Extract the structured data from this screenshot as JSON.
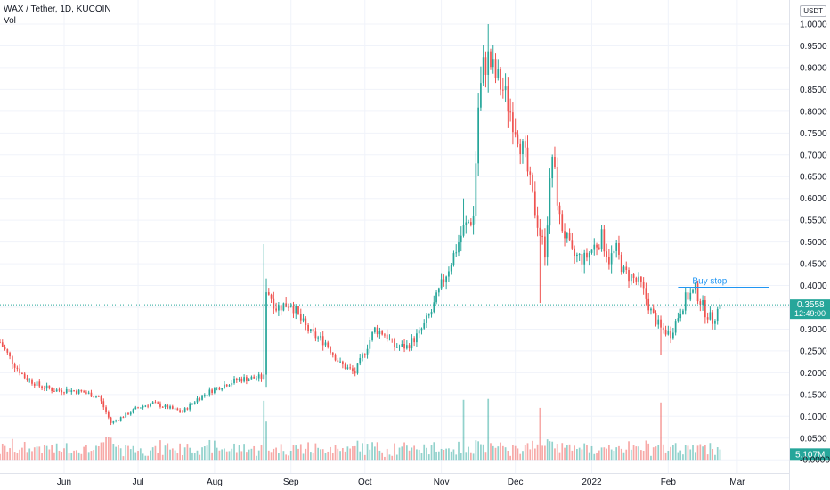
{
  "legend": {
    "symbol_line": "WAX / Tether, 1D, KUCOIN",
    "volume_label": "Vol"
  },
  "unit_label": "USDT",
  "colors": {
    "up": "#26a69a",
    "down": "#ef5350",
    "price_line": "#26a69a",
    "vol_badge": "#26a69a"
  },
  "chart_data": {
    "type": "candlestick",
    "symbol": "WAX / Tether, 1D, KUCOIN",
    "y_axis": {
      "ticks": [
        1.0,
        0.95,
        0.9,
        0.85,
        0.8,
        0.75,
        0.7,
        0.65,
        0.6,
        0.55,
        0.5,
        0.45,
        0.4,
        0.35,
        0.3,
        0.25,
        0.2,
        0.15,
        0.1,
        0.05,
        -0.0
      ],
      "tick_labels": [
        "1.0000",
        "0.9500",
        "0.9000",
        "0.8500",
        "0.8000",
        "0.7500",
        "0.7000",
        "0.6500",
        "0.6000",
        "0.5500",
        "0.5000",
        "0.4500",
        "0.4000",
        "",
        "0.3000",
        "0.2500",
        "0.2000",
        "0.1500",
        "0.1000",
        "0.0500",
        "-0.0000"
      ],
      "range": [
        -0.02,
        1.045
      ]
    },
    "x_axis": {
      "labels": [
        "Jun",
        "Jul",
        "Aug",
        "Sep",
        "Oct",
        "Nov",
        "Dec",
        "2022",
        "Feb",
        "Mar"
      ],
      "label_days": [
        26,
        56,
        87,
        118,
        148,
        179,
        209,
        240,
        271,
        299
      ],
      "total_days": 320
    },
    "current_price": {
      "value": 0.3558,
      "label": "0.3558",
      "countdown": "12:49:00"
    },
    "volume_badge": "5.107M",
    "annotation": {
      "text": "Buy stop",
      "price": 0.396,
      "from_day": 275,
      "to_day": 312
    },
    "close_keypoints": [
      [
        0,
        0.27
      ],
      [
        5,
        0.225
      ],
      [
        10,
        0.19
      ],
      [
        16,
        0.17
      ],
      [
        22,
        0.16
      ],
      [
        28,
        0.16
      ],
      [
        34,
        0.155
      ],
      [
        40,
        0.145
      ],
      [
        45,
        0.085
      ],
      [
        50,
        0.1
      ],
      [
        56,
        0.12
      ],
      [
        62,
        0.13
      ],
      [
        68,
        0.12
      ],
      [
        74,
        0.11
      ],
      [
        80,
        0.14
      ],
      [
        86,
        0.16
      ],
      [
        92,
        0.175
      ],
      [
        97,
        0.185
      ],
      [
        107,
        0.19
      ],
      [
        108,
        0.395
      ],
      [
        112,
        0.35
      ],
      [
        118,
        0.36
      ],
      [
        122,
        0.32
      ],
      [
        126,
        0.29
      ],
      [
        132,
        0.27
      ],
      [
        138,
        0.22
      ],
      [
        144,
        0.2
      ],
      [
        148,
        0.25
      ],
      [
        152,
        0.3
      ],
      [
        156,
        0.29
      ],
      [
        160,
        0.26
      ],
      [
        165,
        0.26
      ],
      [
        170,
        0.29
      ],
      [
        175,
        0.34
      ],
      [
        179,
        0.4
      ],
      [
        184,
        0.47
      ],
      [
        188,
        0.53
      ],
      [
        192,
        0.56
      ],
      [
        194,
        0.81
      ],
      [
        196,
        0.9
      ],
      [
        198,
        0.92
      ],
      [
        201,
        0.88
      ],
      [
        204,
        0.85
      ],
      [
        207,
        0.8
      ],
      [
        210,
        0.75
      ],
      [
        213,
        0.69
      ],
      [
        216,
        0.6
      ],
      [
        219,
        0.52
      ],
      [
        221,
        0.48
      ],
      [
        224,
        0.7
      ],
      [
        227,
        0.55
      ],
      [
        232,
        0.47
      ],
      [
        237,
        0.46
      ],
      [
        241,
        0.49
      ],
      [
        244,
        0.51
      ],
      [
        247,
        0.46
      ],
      [
        250,
        0.48
      ],
      [
        253,
        0.43
      ],
      [
        256,
        0.42
      ],
      [
        260,
        0.4
      ],
      [
        264,
        0.34
      ],
      [
        268,
        0.3
      ],
      [
        272,
        0.29
      ],
      [
        275,
        0.33
      ],
      [
        278,
        0.37
      ],
      [
        282,
        0.39
      ],
      [
        286,
        0.34
      ],
      [
        289,
        0.32
      ],
      [
        292,
        0.3558
      ]
    ],
    "grid": true
  }
}
